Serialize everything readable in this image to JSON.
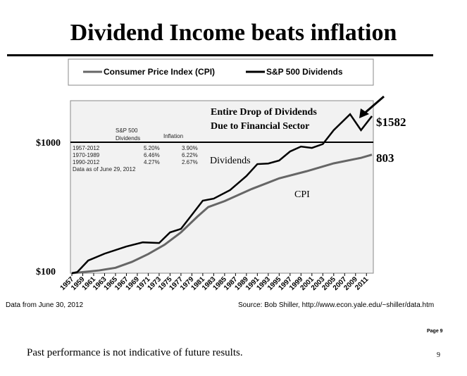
{
  "title": "Dividend Income beats inflation",
  "chart_data": {
    "type": "line",
    "yscale": "log",
    "ylim": [
      95,
      2075
    ],
    "xlim": [
      1957,
      2012
    ],
    "ytick_labels": [
      "$100",
      "$1000"
    ],
    "ytick_values": [
      100,
      1000
    ],
    "xtick_labels": [
      "1957",
      "1959",
      "1961",
      "1963",
      "1965",
      "1967",
      "1969",
      "1971",
      "1973",
      "1975",
      "1977",
      "1979",
      "1981",
      "1983",
      "1985",
      "1987",
      "1989",
      "1991",
      "1993",
      "1995",
      "1997",
      "1999",
      "2001",
      "2003",
      "2005",
      "2007",
      "2009",
      "2011"
    ],
    "legend": "top",
    "series": [
      {
        "name": "Consumer Price Index (CPI)",
        "color": "#666666",
        "x": [
          1957,
          1962,
          1965,
          1968,
          1971,
          1974,
          1977,
          1980,
          1982,
          1985,
          1990,
          1995,
          2000,
          2005,
          2010,
          2012
        ],
        "y": [
          100,
          105,
          110,
          122,
          140,
          165,
          205,
          270,
          320,
          355,
          440,
          530,
          600,
          690,
          760,
          803
        ]
      },
      {
        "name": "S&P 500 Dividends",
        "color": "#000000",
        "x": [
          1957,
          1958,
          1960,
          1963,
          1967,
          1970,
          1973,
          1975,
          1977,
          1979,
          1981,
          1983,
          1986,
          1989,
          1991,
          1993,
          1995,
          1997,
          1999,
          2001,
          2003,
          2005,
          2008,
          2010,
          2012
        ],
        "y": [
          100,
          102,
          125,
          141,
          160,
          172,
          170,
          205,
          218,
          279,
          358,
          371,
          431,
          552,
          681,
          688,
          725,
          850,
          927,
          905,
          968,
          1236,
          1637,
          1236,
          1582
        ]
      }
    ],
    "annotations": {
      "headline_1": "Entire Drop of Dividends",
      "headline_2": "Due to Financial Sector",
      "dividends": "Dividends",
      "cpi": "CPI",
      "end_div": "$1582",
      "end_cpi": "803"
    },
    "table": {
      "header_1": "S&P 500",
      "header_2": "Dividends",
      "header_3": "Inflation",
      "rows": [
        [
          "1957-2012",
          "5.20%",
          "3.90%"
        ],
        [
          "1970-1989",
          "6.46%",
          "6.22%"
        ],
        [
          "1990-2012",
          "4.27%",
          "2.67%"
        ]
      ],
      "note": "Data as of June 29, 2012"
    }
  },
  "footer": {
    "left": "Data from June 30, 2012",
    "right": "Source: Bob Shiller, http://www.econ.yale.edu/~shiller/data.htm",
    "page_label": "Page 9",
    "page_number": "9",
    "disclaimer": "Past performance is not indicative of future results."
  }
}
